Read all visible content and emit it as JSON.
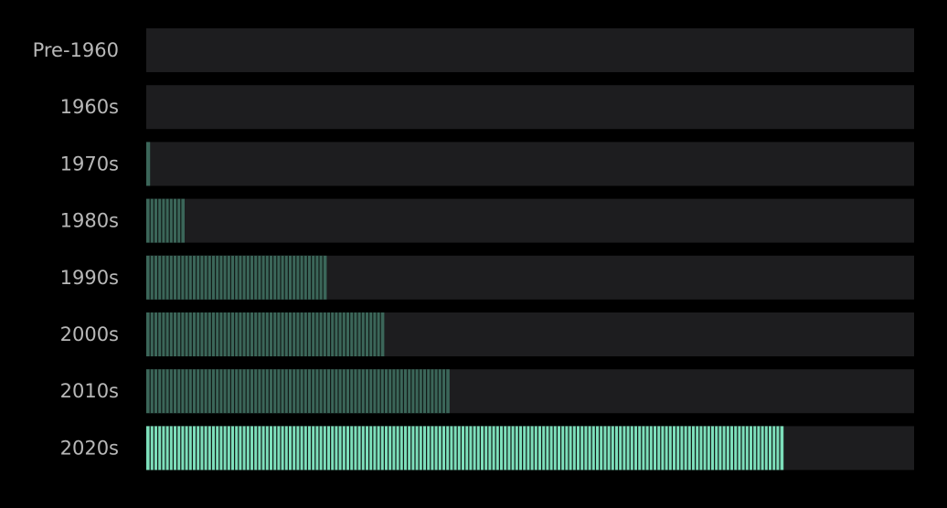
{
  "chart_data": {
    "type": "bar",
    "orientation": "horizontal",
    "title": "",
    "xlabel": "",
    "ylabel": "",
    "categories": [
      "Pre-1960",
      "1960s",
      "1970s",
      "1980s",
      "1990s",
      "2000s",
      "2010s",
      "2020s"
    ],
    "values": [
      0,
      0,
      1,
      10,
      47,
      62,
      79,
      166
    ],
    "xlim": [
      0,
      200
    ],
    "grid": false,
    "legend": "none",
    "highlight_category": "2020s",
    "colors": {
      "background": "#000000",
      "track": "#1d1d1f",
      "bar": "#3b6659",
      "bar_highlight": "#7ddfbb",
      "segment_separator": "#111a17",
      "label": "#b8b8b8"
    }
  }
}
